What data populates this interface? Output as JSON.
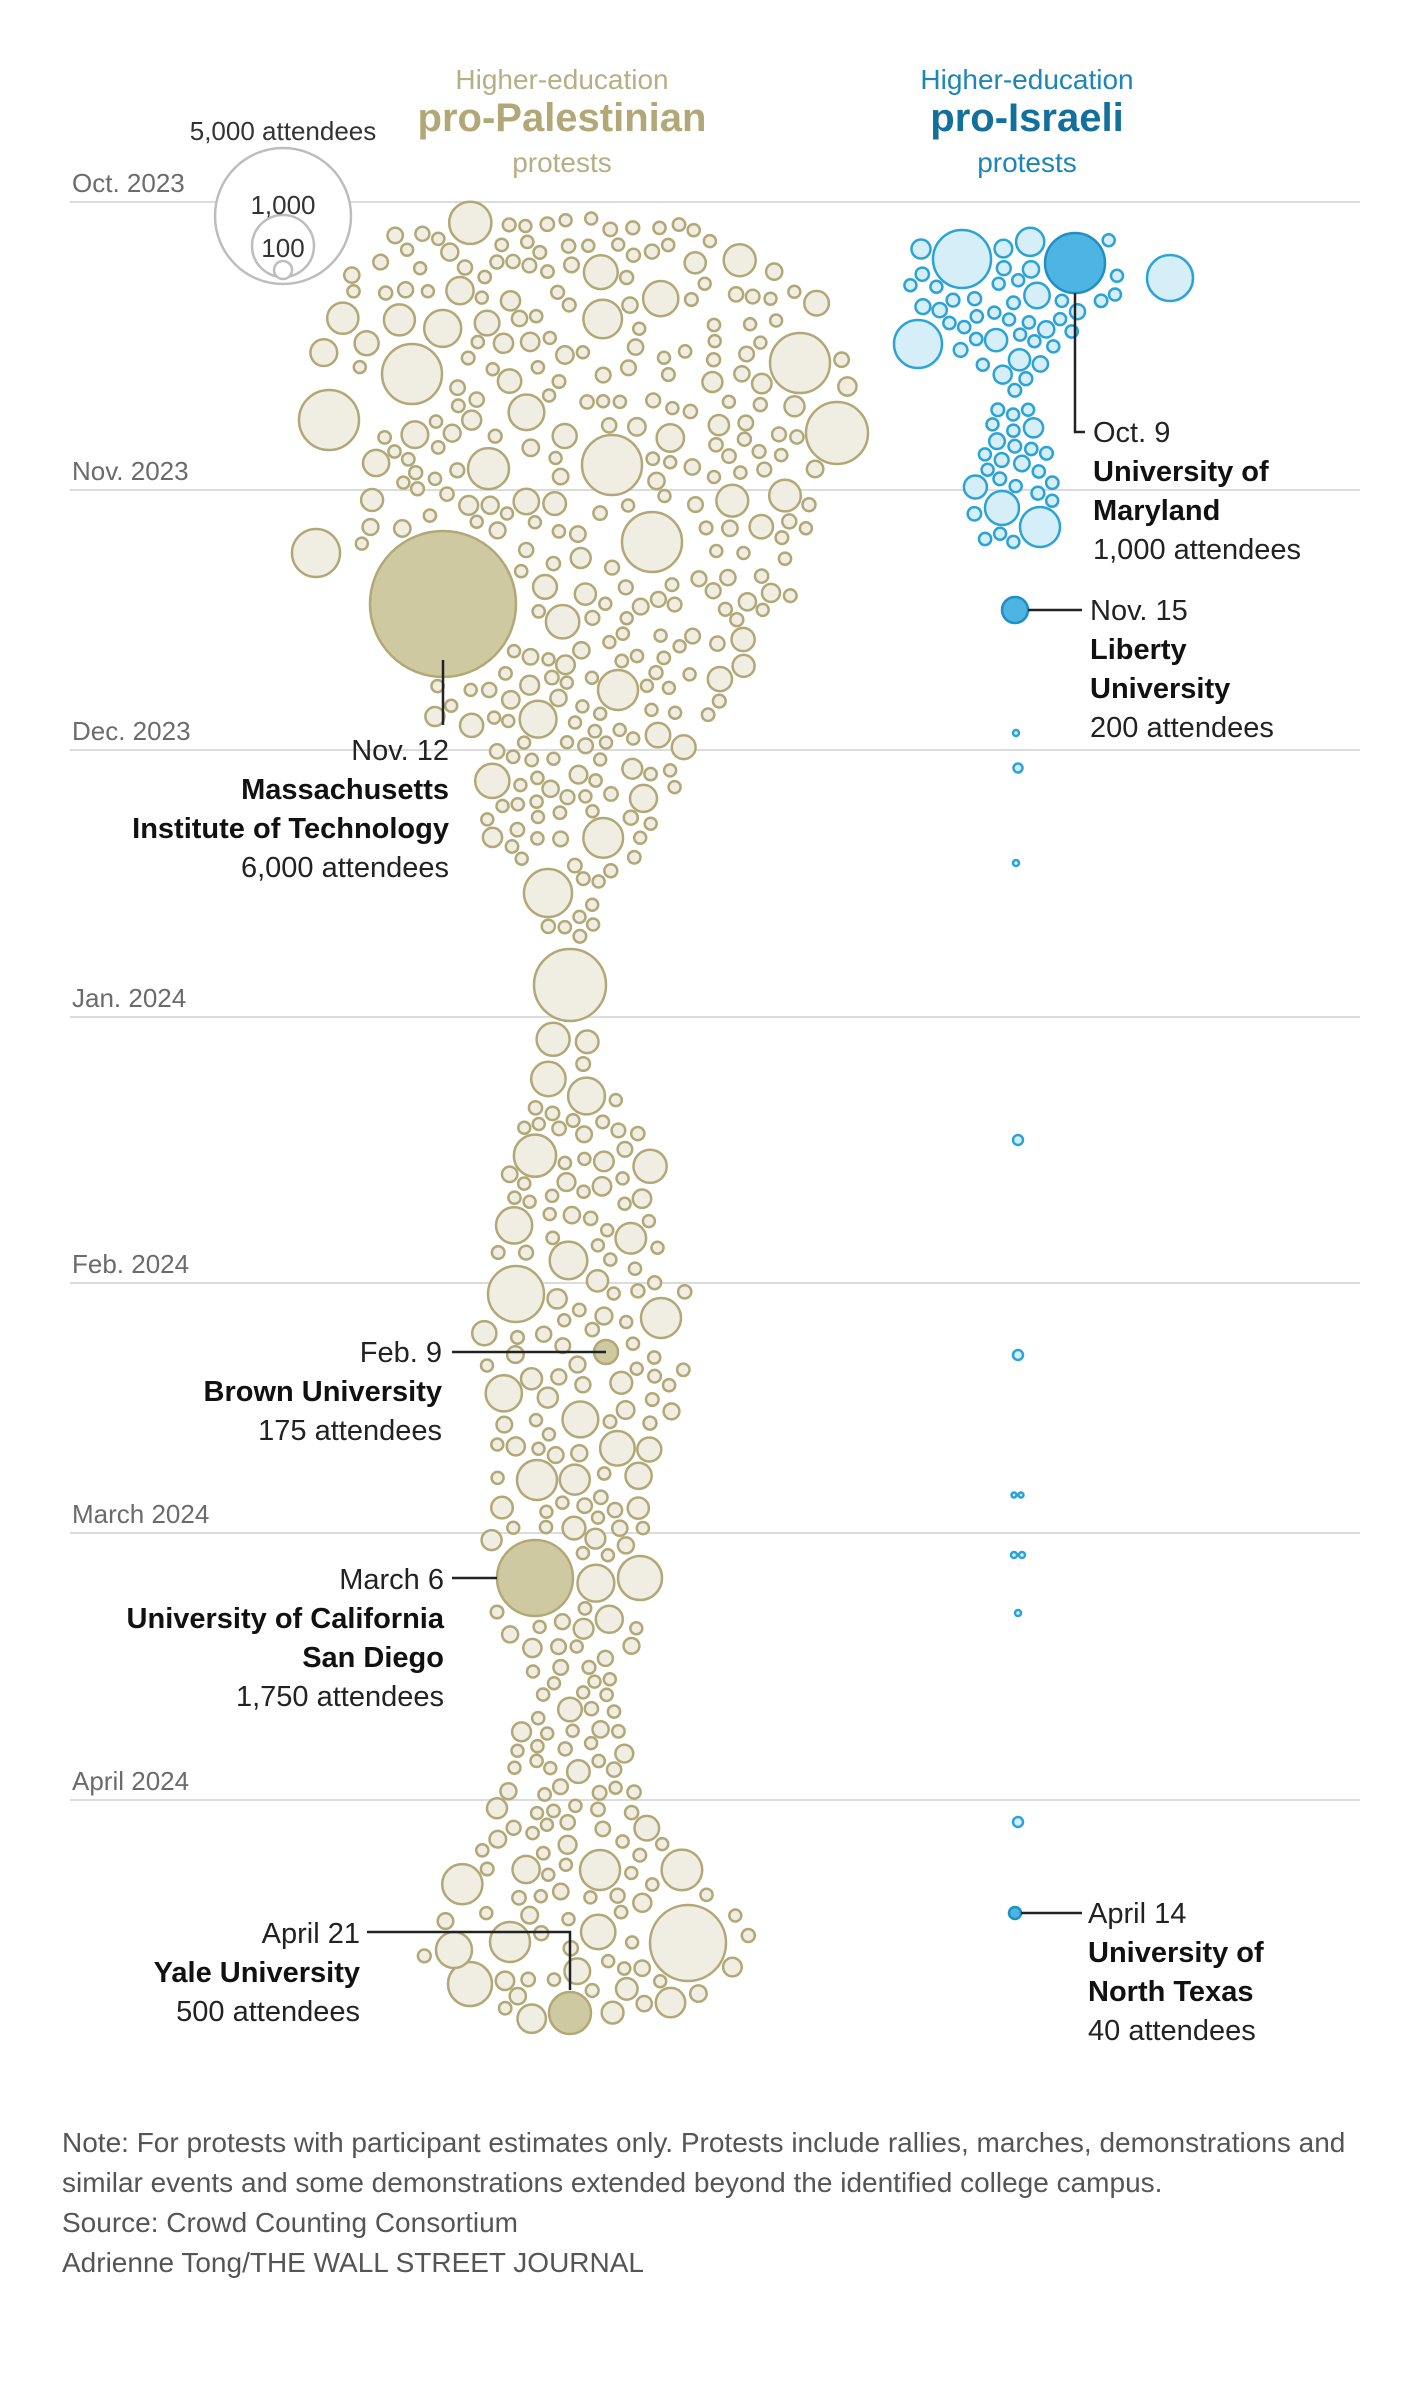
{
  "chart_data": {
    "type": "scatter",
    "title": "",
    "series": [
      {
        "name": "Higher-education pro-Palestinian protests",
        "color": "#b2a877",
        "fill": "#f0eee3",
        "highlight_fill": "#cfc9a1"
      },
      {
        "name": "Higher-education pro-Israeli protests",
        "color": "#2ba3d9",
        "fill": "#d6eef8",
        "highlight_fill": "#4eb5e3"
      }
    ],
    "headers": {
      "palestinian": {
        "line1": "Higher-education",
        "line2": "pro-Palestinian",
        "line3": "protests"
      },
      "israeli": {
        "line1": "Higher-education",
        "line2": "pro-Israeli",
        "line3": "protests"
      }
    },
    "y_axis": {
      "type": "time",
      "range": [
        "2023-10-01",
        "2024-05-01"
      ],
      "months": [
        "Oct. 2023",
        "Nov. 2023",
        "Dec. 2023",
        "Jan. 2024",
        "Feb. 2024",
        "March 2024",
        "April 2024"
      ],
      "grid": true
    },
    "size_legend": {
      "values": [
        5000,
        1000,
        100
      ],
      "labels": [
        "5,000 attendees",
        "1,000",
        "100"
      ]
    },
    "annotations": [
      {
        "series": "pro-Palestinian",
        "date": "Nov. 12",
        "name_lines": [
          "Massachusetts",
          "Institute of Technology"
        ],
        "count": "6,000 attendees",
        "attendees": 6000
      },
      {
        "series": "pro-Palestinian",
        "date": "Feb. 9",
        "name_lines": [
          "Brown University"
        ],
        "count": "175 attendees",
        "attendees": 175
      },
      {
        "series": "pro-Palestinian",
        "date": "March 6",
        "name_lines": [
          "University of California",
          "San Diego"
        ],
        "count": "1,750 attendees",
        "attendees": 1750
      },
      {
        "series": "pro-Palestinian",
        "date": "April 21",
        "name_lines": [
          "Yale University"
        ],
        "count": "500 attendees",
        "attendees": 500
      },
      {
        "series": "pro-Israeli",
        "date": "Oct. 9",
        "name_lines": [
          "University of",
          "Maryland"
        ],
        "count": "1,000 attendees",
        "attendees": 1000
      },
      {
        "series": "pro-Israeli",
        "date": "Nov. 15",
        "name_lines": [
          "Liberty",
          "University"
        ],
        "count": "200 attendees",
        "attendees": 200
      },
      {
        "series": "pro-Israeli",
        "date": "April 14",
        "name_lines": [
          "University of",
          "North Texas"
        ],
        "count": "40 attendees",
        "attendees": 40
      }
    ]
  },
  "notes": {
    "note": "Note: For protests with participant estimates only. Protests include rallies, marches, demonstrations and similar events and some demonstrations extended beyond the identified college campus.",
    "source": "Source:  Crowd Counting Consortium",
    "credit": "Adrienne Tong/THE WALL STREET JOURNAL"
  }
}
